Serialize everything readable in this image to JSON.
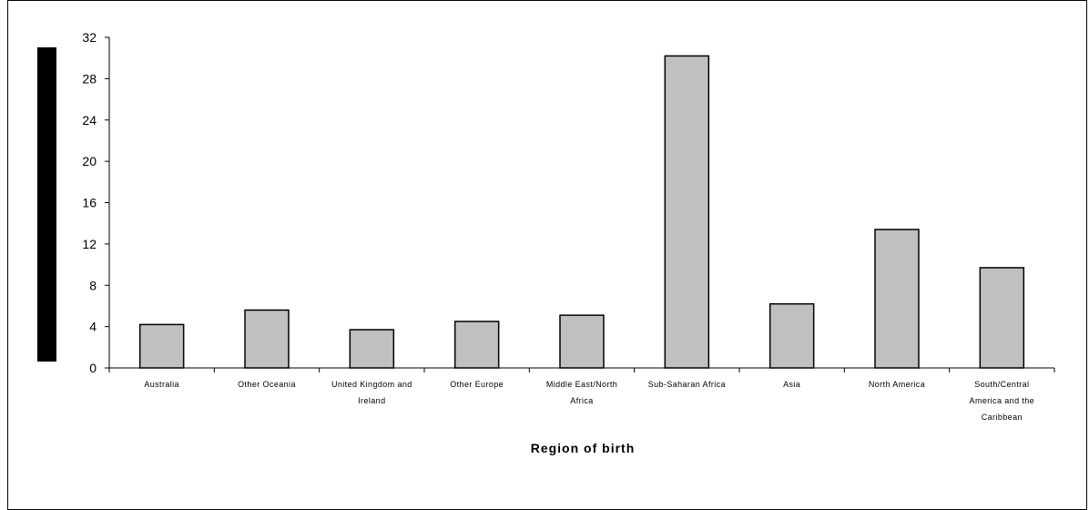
{
  "chart_data": {
    "type": "bar",
    "xlabel": "Region of birth",
    "ylabel": "",
    "ylim": [
      0,
      32
    ],
    "yticks": [
      0,
      4,
      8,
      12,
      16,
      20,
      24,
      28,
      32
    ],
    "grid": false,
    "categories": [
      [
        "Australia"
      ],
      [
        "Other Oceania"
      ],
      [
        "United Kingdom and",
        "Ireland"
      ],
      [
        "Other Europe"
      ],
      [
        "Middle East/North",
        "Africa"
      ],
      [
        "Sub-Saharan Africa"
      ],
      [
        "Asia"
      ],
      [
        "North America"
      ],
      [
        "South/Central",
        "America and the",
        "Caribbean"
      ]
    ],
    "values": [
      4.2,
      5.6,
      3.7,
      4.5,
      5.1,
      30.2,
      6.2,
      13.4,
      9.7
    ],
    "bar_color": "#c0c0c0",
    "bar_edge_color": "#000000"
  }
}
